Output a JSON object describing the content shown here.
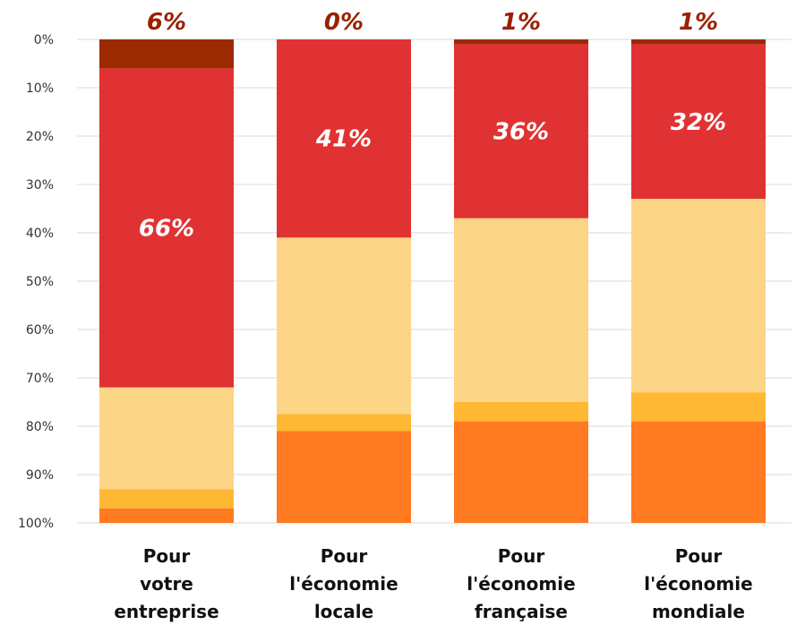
{
  "chart_data": {
    "type": "bar",
    "stacked": true,
    "orientation": "vertical",
    "y_axis": "reversed",
    "ylim": [
      0,
      100
    ],
    "yticks": [
      "0%",
      "10%",
      "20%",
      "30%",
      "40%",
      "50%",
      "60%",
      "70%",
      "80%",
      "90%",
      "100%"
    ],
    "grid": true,
    "categories": [
      [
        "Pour",
        "votre",
        "entreprise"
      ],
      [
        "Pour",
        "l'économie",
        "locale"
      ],
      [
        "Pour",
        "l'économie",
        "française"
      ],
      [
        "Pour",
        "l'économie",
        "mondiale"
      ]
    ],
    "series": [
      {
        "color": "#9b2a00",
        "values": [
          6,
          0,
          1,
          1
        ]
      },
      {
        "color": "#e03232",
        "values": [
          66,
          41,
          36,
          32
        ]
      },
      {
        "color": "#fdd586",
        "values": [
          21,
          36.5,
          38,
          40
        ]
      },
      {
        "color": "#ffb833",
        "values": [
          4,
          3.5,
          4,
          6
        ]
      },
      {
        "color": "#ff7a21",
        "values": [
          3,
          19,
          21,
          21
        ]
      }
    ],
    "top_labels": [
      "6%",
      "0%",
      "1%",
      "1%"
    ],
    "inner_labels": [
      "66%",
      "41%",
      "36%",
      "32%"
    ]
  }
}
